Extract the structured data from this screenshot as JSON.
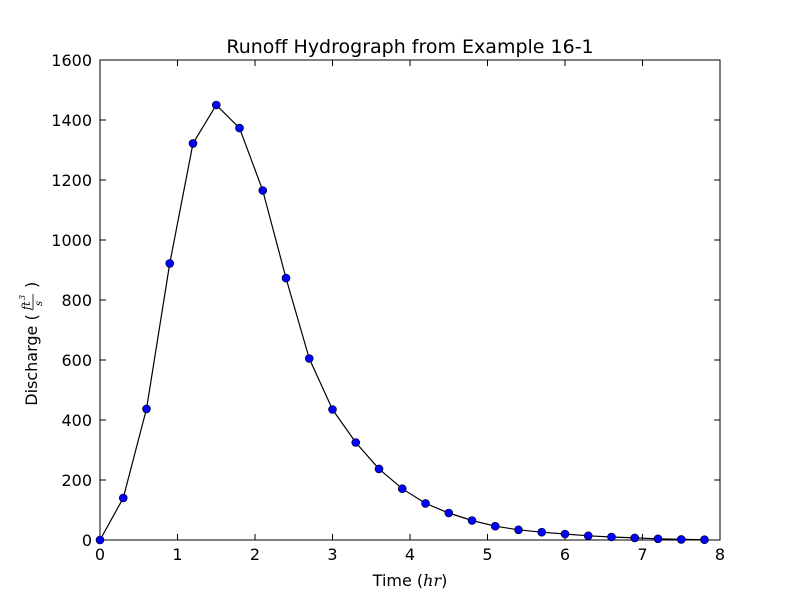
{
  "chart_data": {
    "type": "line",
    "title": "Runoff Hydrograph from Example 16-1",
    "xlabel": {
      "text": "Time (",
      "math": "hr",
      "suffix": ")"
    },
    "ylabel": {
      "text": "Discharge (",
      "math_num": "ft",
      "math_exp": "3",
      "math_den": "s",
      "suffix": ")"
    },
    "xlim": [
      0,
      8
    ],
    "ylim": [
      0,
      1600
    ],
    "xticks": [
      "0",
      "1",
      "2",
      "3",
      "4",
      "5",
      "6",
      "7",
      "8"
    ],
    "yticks": [
      "0",
      "200",
      "400",
      "600",
      "800",
      "1000",
      "1200",
      "1400",
      "1600"
    ],
    "grid": false,
    "series": [
      {
        "line_color": "#000000",
        "marker_color": "#0000ff",
        "x": [
          0,
          0.3,
          0.6,
          0.9,
          1.2,
          1.5,
          1.8,
          2.1,
          2.4,
          2.7,
          3.0,
          3.3,
          3.6,
          3.9,
          4.2,
          4.5,
          4.8,
          5.1,
          5.4,
          5.7,
          6.0,
          6.3,
          6.6,
          6.9,
          7.2,
          7.5,
          7.8
        ],
        "y": [
          0,
          140,
          437,
          922,
          1322,
          1450,
          1373,
          1165,
          873,
          605,
          435,
          325,
          237,
          171,
          122,
          90,
          65,
          46,
          34,
          26,
          20,
          14,
          10,
          7,
          4,
          2,
          1
        ]
      }
    ]
  }
}
